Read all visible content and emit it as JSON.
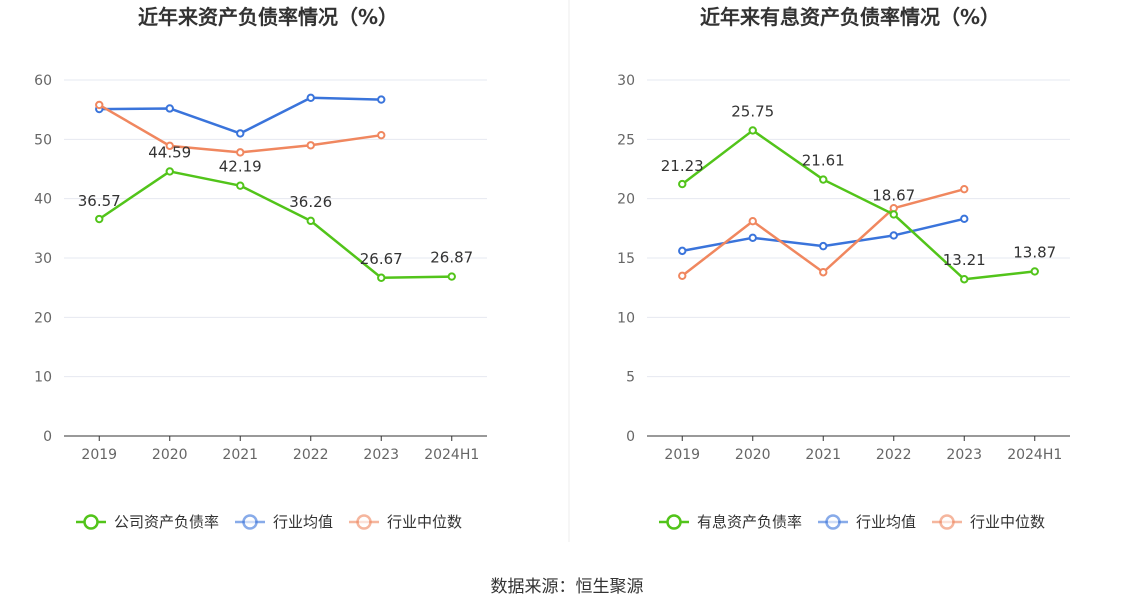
{
  "source_label": "数据来源：恒生聚源",
  "colors": {
    "company": "#52c41a",
    "industry_avg": "#3a74db",
    "industry_median": "#f0875f",
    "grid": "#e6e8f0",
    "axis": "#333333"
  },
  "chart_data": [
    {
      "type": "line",
      "title": "近年来资产负债率情况（%）",
      "categories": [
        "2019",
        "2020",
        "2021",
        "2022",
        "2023",
        "2024H1"
      ],
      "ylim": [
        0,
        60
      ],
      "yticks": [
        0,
        10,
        20,
        30,
        40,
        50,
        60
      ],
      "grid": true,
      "legend_position": "bottom",
      "series": [
        {
          "name": "公司资产负债率",
          "color": "#52c41a",
          "values": [
            36.57,
            44.59,
            42.19,
            36.26,
            26.67,
            26.87
          ],
          "labels": [
            "36.57",
            "44.59",
            "42.19",
            "36.26",
            "26.67",
            "26.87"
          ]
        },
        {
          "name": "行业均值",
          "color": "#3a74db",
          "values": [
            55.1,
            55.2,
            51.0,
            57.0,
            56.7,
            null
          ],
          "labels": []
        },
        {
          "name": "行业中位数",
          "color": "#f0875f",
          "values": [
            55.8,
            48.9,
            47.8,
            49.0,
            50.7,
            null
          ],
          "labels": []
        }
      ]
    },
    {
      "type": "line",
      "title": "近年来有息资产负债率情况（%）",
      "categories": [
        "2019",
        "2020",
        "2021",
        "2022",
        "2023",
        "2024H1"
      ],
      "ylim": [
        0,
        30
      ],
      "yticks": [
        0,
        5,
        10,
        15,
        20,
        25,
        30
      ],
      "grid": true,
      "legend_position": "bottom",
      "series": [
        {
          "name": "有息资产负债率",
          "color": "#52c41a",
          "values": [
            21.23,
            25.75,
            21.61,
            18.67,
            13.21,
            13.87
          ],
          "labels": [
            "21.23",
            "25.75",
            "21.61",
            "18.67",
            "13.21",
            "13.87"
          ]
        },
        {
          "name": "行业均值",
          "color": "#3a74db",
          "values": [
            15.6,
            16.7,
            16.0,
            16.9,
            18.3,
            null
          ],
          "labels": []
        },
        {
          "name": "行业中位数",
          "color": "#f0875f",
          "values": [
            13.5,
            18.1,
            13.8,
            19.2,
            20.8,
            null
          ],
          "labels": []
        }
      ]
    }
  ]
}
